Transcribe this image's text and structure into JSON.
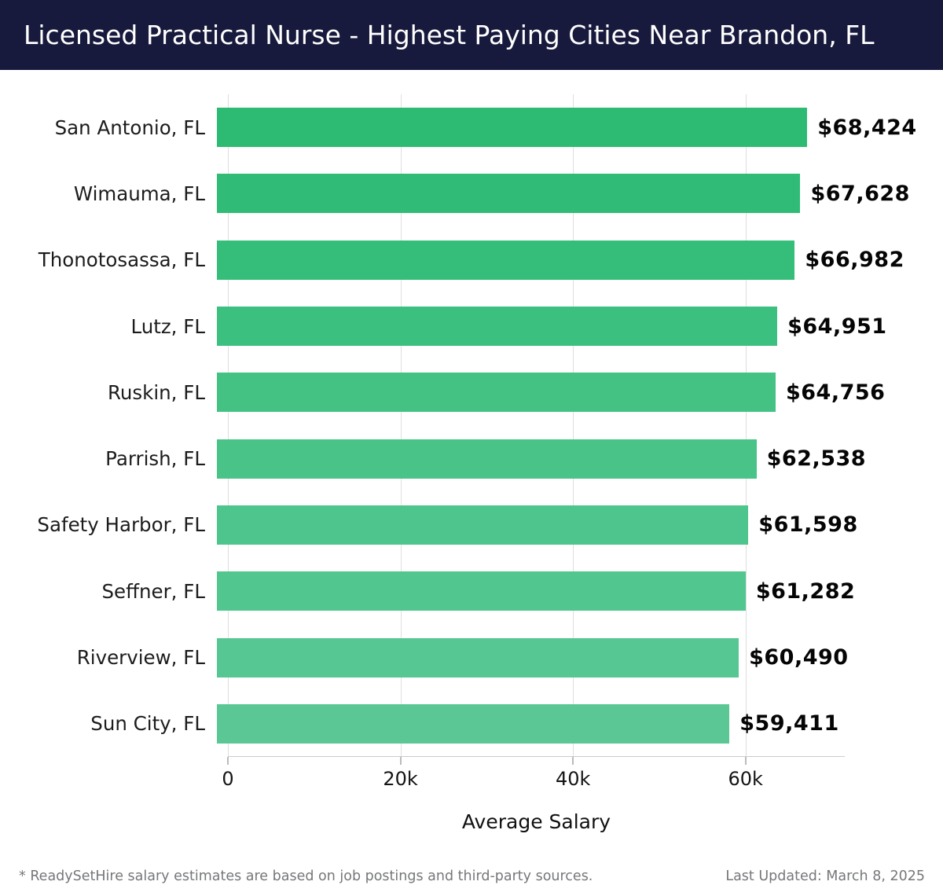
{
  "header": {
    "title": "Licensed Practical Nurse - Highest Paying Cities Near Brandon, FL",
    "background": "#181a3d",
    "text_color": "#ffffff"
  },
  "chart_data": {
    "type": "bar",
    "orientation": "horizontal",
    "title": "Licensed Practical Nurse - Highest Paying Cities Near Brandon, FL",
    "xlabel": "Average Salary",
    "ylabel": "",
    "xlim": [
      0,
      71500
    ],
    "grid": "vertical gridlines on",
    "legend": "none",
    "categories": [
      "San Antonio, FL",
      "Wimauma, FL",
      "Thonotosassa, FL",
      "Lutz, FL",
      "Ruskin, FL",
      "Parrish, FL",
      "Safety Harbor, FL",
      "Seffner, FL",
      "Riverview, FL",
      "Sun City, FL"
    ],
    "values": [
      68424,
      67628,
      66982,
      64951,
      64756,
      62538,
      61598,
      61282,
      60490,
      59411
    ],
    "value_labels": [
      "$68,424",
      "$67,628",
      "$66,982",
      "$64,951",
      "$64,756",
      "$62,538",
      "$61,598",
      "$61,282",
      "$60,490",
      "$59,411"
    ],
    "bar_colors": [
      "#2dbb74",
      "#30bc76",
      "#35be7a",
      "#3cc07f",
      "#43c284",
      "#49c388",
      "#4ec58c",
      "#52c68f",
      "#56c792",
      "#5ac795"
    ],
    "xticks": [
      {
        "value": 0,
        "label": "0"
      },
      {
        "value": 20000,
        "label": "20k"
      },
      {
        "value": 40000,
        "label": "40k"
      },
      {
        "value": 60000,
        "label": "60k"
      }
    ],
    "gridline_color": "#dedede",
    "axis_line_color": "#cccccc"
  },
  "footer": {
    "disclaimer": "* ReadySetHire salary estimates are based on job postings and third-party sources.",
    "last_updated": "Last Updated: March 8, 2025"
  }
}
